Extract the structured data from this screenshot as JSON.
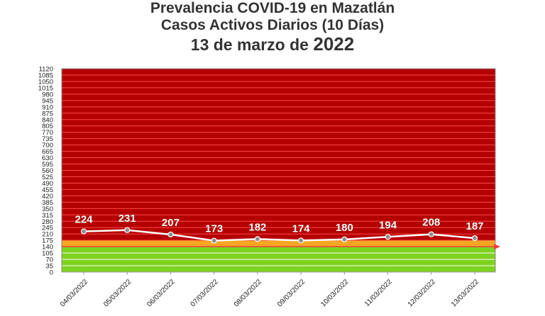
{
  "title": {
    "line1": "Prevalencia COVID-19 en Mazatlán",
    "line2": "Casos Activos Diarios (10 Días)",
    "line3": "13 de marzo de",
    "year": "2022"
  },
  "chart_data": {
    "type": "line",
    "categories": [
      "04/03/2022",
      "05/03/2022",
      "06/03/2022",
      "07/03/2022",
      "08/03/2022",
      "09/03/2022",
      "10/03/2022",
      "11/03/2022",
      "12/03/2022",
      "13/03/2022"
    ],
    "values": [
      224,
      231,
      207,
      173,
      182,
      174,
      180,
      194,
      208,
      187
    ],
    "ylim": [
      0,
      1120
    ],
    "ytick_step": 35,
    "threshold": 140,
    "bands": [
      {
        "from": 0,
        "to": 140,
        "color": "#7ed321"
      },
      {
        "from": 140,
        "to": 175,
        "color": "#f5a623"
      },
      {
        "from": 175,
        "to": 1120,
        "color": "#b40000"
      }
    ],
    "colors": {
      "line": "#ffffff",
      "marker": "#8c8c8c",
      "threshold": "#e8403a",
      "green_grid": "#ffffff",
      "red_grid": "#ff4a4a"
    },
    "grid": true,
    "legend": "none"
  }
}
